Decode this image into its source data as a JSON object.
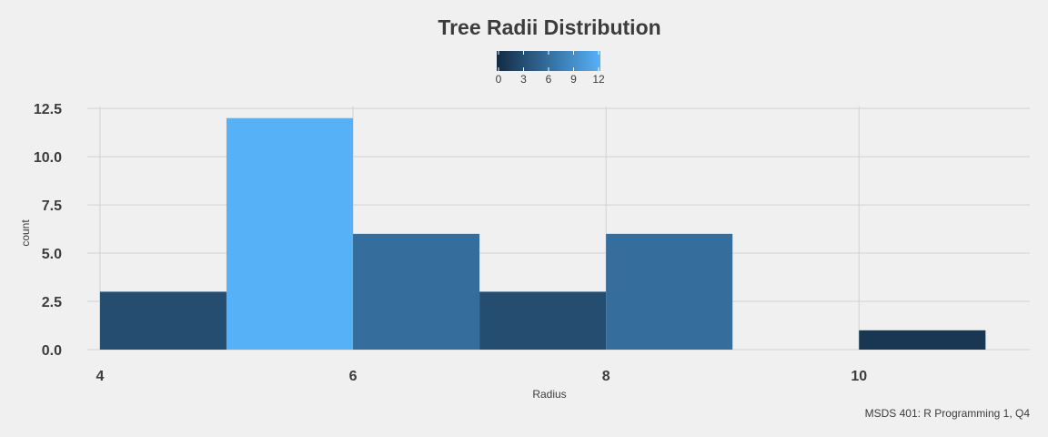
{
  "chart_data": {
    "type": "bar",
    "title": "Tree Radii Distribution",
    "xlabel": "Radius",
    "ylabel": "count",
    "caption": "MSDS 401: R Programming 1, Q4",
    "bins": [
      {
        "x0": 4,
        "x1": 5,
        "count": 3
      },
      {
        "x0": 5,
        "x1": 6,
        "count": 12
      },
      {
        "x0": 6,
        "x1": 7,
        "count": 6
      },
      {
        "x0": 7,
        "x1": 8,
        "count": 3
      },
      {
        "x0": 8,
        "x1": 9,
        "count": 6
      },
      {
        "x0": 9,
        "x1": 10,
        "count": 0
      },
      {
        "x0": 10,
        "x1": 11,
        "count": 1
      }
    ],
    "xlim": [
      3.9,
      11.35
    ],
    "ylim": [
      0,
      12.6
    ],
    "xticks": [
      4,
      6,
      8,
      10
    ],
    "yticks": [
      0.0,
      2.5,
      5.0,
      7.5,
      10.0,
      12.5
    ],
    "xtick_labels": [
      "4",
      "6",
      "8",
      "10"
    ],
    "ytick_labels": [
      "0.0",
      "2.5",
      "5.0",
      "7.5",
      "10.0",
      "12.5"
    ],
    "grid": true,
    "legend": {
      "position": "top",
      "title": "",
      "range": [
        0,
        12
      ],
      "ticks": [
        0,
        3,
        6,
        9,
        12
      ],
      "tick_labels": [
        "0",
        "3",
        "6",
        "9",
        "12"
      ],
      "low_color": "#132b43",
      "high_color": "#56b1f7"
    }
  }
}
